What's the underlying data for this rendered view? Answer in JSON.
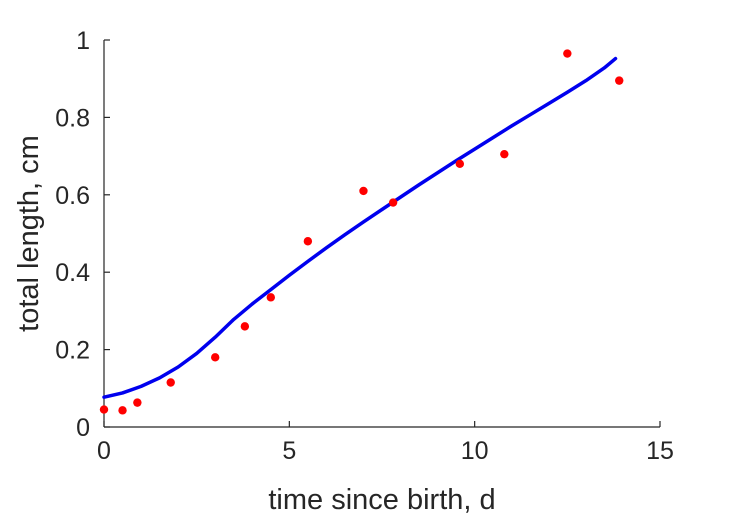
{
  "chart_data": {
    "type": "scatter",
    "xlabel": "time since birth, d",
    "ylabel": "total length, cm",
    "xlim": [
      0,
      15
    ],
    "ylim": [
      0,
      1
    ],
    "xticks": [
      "0",
      "5",
      "10",
      "15"
    ],
    "yticks": [
      "0",
      "0.2",
      "0.4",
      "0.6",
      "0.8",
      "1"
    ],
    "grid": false,
    "series": [
      {
        "kind": "points",
        "color": "#ff0000",
        "x": [
          0.0,
          0.5,
          0.9,
          1.8,
          3.0,
          3.8,
          4.5,
          5.5,
          7.0,
          7.8,
          9.6,
          10.8,
          12.5,
          13.9
        ],
        "y": [
          0.045,
          0.043,
          0.063,
          0.115,
          0.18,
          0.26,
          0.335,
          0.48,
          0.61,
          0.58,
          0.68,
          0.705,
          0.965,
          0.895
        ]
      },
      {
        "kind": "line",
        "color": "#0000ee",
        "x": [
          0,
          0.5,
          1,
          1.5,
          2,
          2.5,
          3,
          3.5,
          4,
          4.5,
          5,
          5.5,
          6,
          6.5,
          7,
          7.5,
          8,
          8.5,
          9,
          9.5,
          10,
          10.5,
          11,
          11.5,
          12,
          12.5,
          13,
          13.5,
          13.8
        ],
        "y": [
          0.077,
          0.088,
          0.105,
          0.127,
          0.155,
          0.19,
          0.232,
          0.278,
          0.318,
          0.355,
          0.392,
          0.428,
          0.463,
          0.497,
          0.53,
          0.562,
          0.594,
          0.626,
          0.657,
          0.688,
          0.718,
          0.748,
          0.778,
          0.807,
          0.836,
          0.865,
          0.895,
          0.928,
          0.952
        ]
      }
    ]
  }
}
